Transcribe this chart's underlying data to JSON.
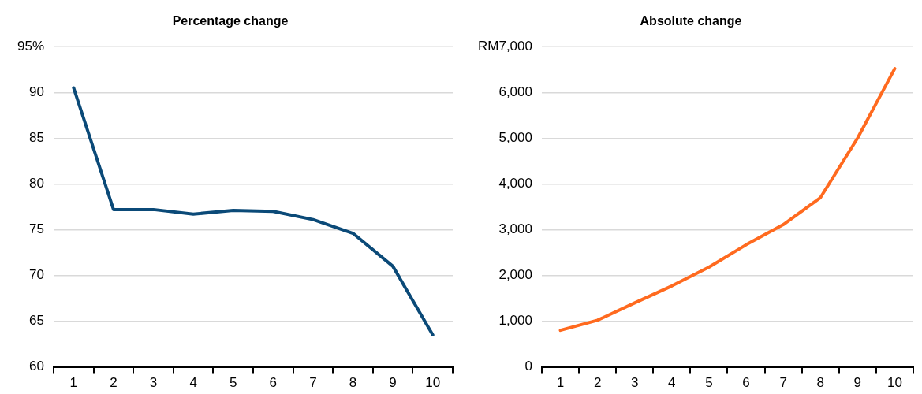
{
  "chart_data": [
    {
      "type": "line",
      "title": "Percentage change",
      "categories": [
        "1",
        "2",
        "3",
        "4",
        "5",
        "6",
        "7",
        "8",
        "9",
        "10"
      ],
      "series": [
        {
          "color": "#0b4a78",
          "values": [
            90.5,
            77.2,
            77.2,
            76.7,
            77.1,
            77.0,
            76.1,
            74.6,
            71.0,
            63.5
          ]
        }
      ],
      "ylim": [
        60,
        95
      ],
      "yticks": [
        60,
        65,
        70,
        75,
        80,
        85,
        90,
        {
          "value": 95,
          "label": "95%"
        }
      ],
      "grid": "y",
      "legend": false
    },
    {
      "type": "line",
      "title": "Absolute change",
      "categories": [
        "1",
        "2",
        "3",
        "4",
        "5",
        "6",
        "7",
        "8",
        "9",
        "10"
      ],
      "series": [
        {
          "color": "#ff6a1f",
          "values": [
            800,
            1020,
            1400,
            1770,
            2180,
            2670,
            3110,
            3700,
            5000,
            6520
          ]
        }
      ],
      "ylim": [
        0,
        7000
      ],
      "yticks": [
        0,
        {
          "value": 1000,
          "label": "1,000"
        },
        {
          "value": 2000,
          "label": "2,000"
        },
        {
          "value": 3000,
          "label": "3,000"
        },
        {
          "value": 4000,
          "label": "4,000"
        },
        {
          "value": 5000,
          "label": "5,000"
        },
        {
          "value": 6000,
          "label": "6,000"
        },
        {
          "value": 7000,
          "label": "RM7,000"
        }
      ],
      "grid": "y",
      "legend": false
    }
  ]
}
